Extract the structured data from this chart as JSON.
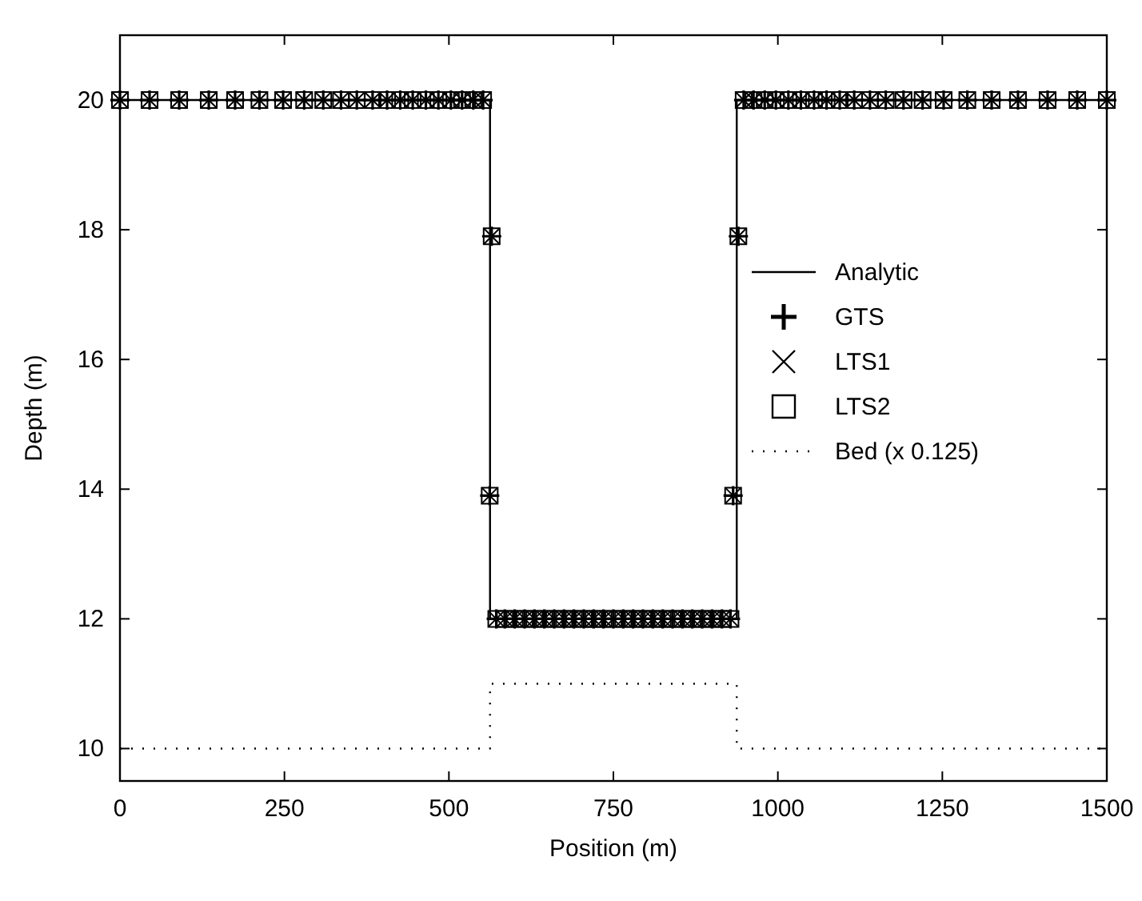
{
  "chart_data": {
    "type": "line",
    "xlabel": "Position (m)",
    "ylabel": "Depth (m)",
    "xlim": [
      0,
      1500
    ],
    "ylim": [
      9.5,
      21
    ],
    "xticks": [
      0,
      250,
      500,
      750,
      1000,
      1250,
      1500
    ],
    "yticks": [
      10,
      12,
      14,
      16,
      18,
      20
    ],
    "grid": false,
    "legend": "right",
    "series": [
      {
        "name": "Analytic",
        "color": "#000000",
        "marker": "none",
        "line_style": "solid",
        "x": [
          0,
          562.5,
          562.5,
          937.5,
          937.5,
          1500
        ],
        "values": [
          20,
          20,
          12,
          12,
          20,
          20
        ]
      },
      {
        "name": "GTS",
        "type": "scatter",
        "color": "#000000",
        "marker": "plus",
        "x": [
          0,
          45,
          90,
          135,
          175,
          212,
          248,
          280,
          309,
          336,
          360,
          384,
          406,
          426,
          445,
          465,
          484,
          503,
          520,
          537,
          552,
          565,
          562,
          572,
          585,
          600,
          615,
          630,
          645,
          660,
          675,
          690,
          705,
          720,
          735,
          750,
          765,
          780,
          795,
          810,
          825,
          840,
          855,
          870,
          885,
          900,
          915,
          928,
          932,
          940,
          948,
          963,
          980,
          997,
          1016,
          1035,
          1055,
          1074,
          1094,
          1116,
          1140,
          1164,
          1191,
          1220,
          1252,
          1288,
          1325,
          1365,
          1410,
          1455,
          1500
        ],
        "values": [
          20,
          20,
          20,
          20,
          20,
          20,
          20,
          20,
          20,
          20,
          20,
          20,
          20,
          20,
          20,
          20,
          20,
          20,
          20,
          20,
          20,
          17.9,
          13.9,
          12,
          12,
          12,
          12,
          12,
          12,
          12,
          12,
          12,
          12,
          12,
          12,
          12,
          12,
          12,
          12,
          12,
          12,
          12,
          12,
          12,
          12,
          12,
          12,
          12,
          13.9,
          17.9,
          20,
          20,
          20,
          20,
          20,
          20,
          20,
          20,
          20,
          20,
          20,
          20,
          20,
          20,
          20,
          20,
          20,
          20,
          20,
          20,
          20
        ]
      },
      {
        "name": "LTS1",
        "type": "scatter",
        "color": "#000000",
        "marker": "cross",
        "x": [
          0,
          45,
          90,
          135,
          175,
          212,
          248,
          280,
          309,
          336,
          360,
          384,
          406,
          426,
          445,
          465,
          484,
          503,
          520,
          537,
          552,
          565,
          562,
          572,
          585,
          600,
          615,
          630,
          645,
          660,
          675,
          690,
          705,
          720,
          735,
          750,
          765,
          780,
          795,
          810,
          825,
          840,
          855,
          870,
          885,
          900,
          915,
          928,
          932,
          940,
          948,
          963,
          980,
          997,
          1016,
          1035,
          1055,
          1074,
          1094,
          1116,
          1140,
          1164,
          1191,
          1220,
          1252,
          1288,
          1325,
          1365,
          1410,
          1455,
          1500
        ],
        "values": [
          20,
          20,
          20,
          20,
          20,
          20,
          20,
          20,
          20,
          20,
          20,
          20,
          20,
          20,
          20,
          20,
          20,
          20,
          20,
          20,
          20,
          17.9,
          13.9,
          12,
          12,
          12,
          12,
          12,
          12,
          12,
          12,
          12,
          12,
          12,
          12,
          12,
          12,
          12,
          12,
          12,
          12,
          12,
          12,
          12,
          12,
          12,
          12,
          12,
          13.9,
          17.9,
          20,
          20,
          20,
          20,
          20,
          20,
          20,
          20,
          20,
          20,
          20,
          20,
          20,
          20,
          20,
          20,
          20,
          20,
          20,
          20,
          20
        ]
      },
      {
        "name": "LTS2",
        "type": "scatter",
        "color": "#000000",
        "marker": "square",
        "x": [
          0,
          45,
          90,
          135,
          175,
          212,
          248,
          280,
          309,
          336,
          360,
          384,
          406,
          426,
          445,
          465,
          484,
          503,
          520,
          537,
          552,
          565,
          562,
          572,
          585,
          600,
          615,
          630,
          645,
          660,
          675,
          690,
          705,
          720,
          735,
          750,
          765,
          780,
          795,
          810,
          825,
          840,
          855,
          870,
          885,
          900,
          915,
          928,
          932,
          940,
          948,
          963,
          980,
          997,
          1016,
          1035,
          1055,
          1074,
          1094,
          1116,
          1140,
          1164,
          1191,
          1220,
          1252,
          1288,
          1325,
          1365,
          1410,
          1455,
          1500
        ],
        "values": [
          20,
          20,
          20,
          20,
          20,
          20,
          20,
          20,
          20,
          20,
          20,
          20,
          20,
          20,
          20,
          20,
          20,
          20,
          20,
          20,
          20,
          17.9,
          13.9,
          12,
          12,
          12,
          12,
          12,
          12,
          12,
          12,
          12,
          12,
          12,
          12,
          12,
          12,
          12,
          12,
          12,
          12,
          12,
          12,
          12,
          12,
          12,
          12,
          12,
          13.9,
          17.9,
          20,
          20,
          20,
          20,
          20,
          20,
          20,
          20,
          20,
          20,
          20,
          20,
          20,
          20,
          20,
          20,
          20,
          20,
          20,
          20,
          20
        ]
      },
      {
        "name": "Bed (x 0.125)",
        "color": "#000000",
        "marker": "none",
        "line_style": "dotted",
        "x": [
          0,
          562.5,
          562.5,
          937.5,
          937.5,
          1500
        ],
        "values": [
          10,
          10,
          11,
          11,
          10,
          10
        ]
      }
    ]
  }
}
